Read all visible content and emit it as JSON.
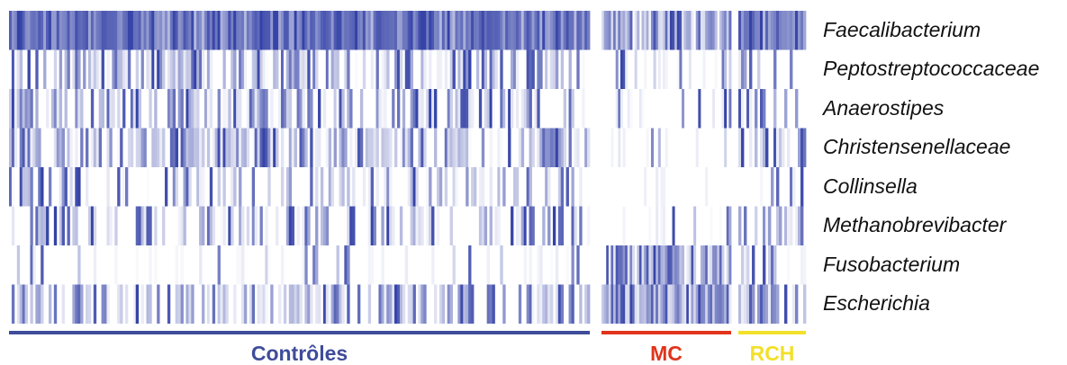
{
  "chart_data": {
    "type": "heatmap",
    "rows": [
      "Faecalibacterium",
      "Peptostreptococcaceae",
      "Anaerostipes",
      "Christensenellaceae",
      "Collinsella",
      "Methanobrevibacter",
      "Fusobacterium",
      "Escherichia"
    ],
    "groups": [
      {
        "label": "Contrôles",
        "color": "#3f4c9a",
        "n_samples": 220
      },
      {
        "label": "MC",
        "color": "#e0341c",
        "n_samples": 55
      },
      {
        "label": "RCH",
        "color": "#f2e02a",
        "n_samples": 25
      }
    ],
    "cell_color_high": "#3341a6",
    "cell_color_low": "#ffffff",
    "relative_intensity_by_group": {
      "Contrôles": [
        0.85,
        0.35,
        0.3,
        0.4,
        0.2,
        0.25,
        0.05,
        0.35
      ],
      "MC": [
        0.6,
        0.2,
        0.15,
        0.05,
        0.05,
        0.05,
        0.5,
        0.65
      ],
      "RCH": [
        0.8,
        0.25,
        0.3,
        0.2,
        0.1,
        0.2,
        0.15,
        0.25
      ]
    },
    "xlabel": "",
    "ylabel": ""
  }
}
